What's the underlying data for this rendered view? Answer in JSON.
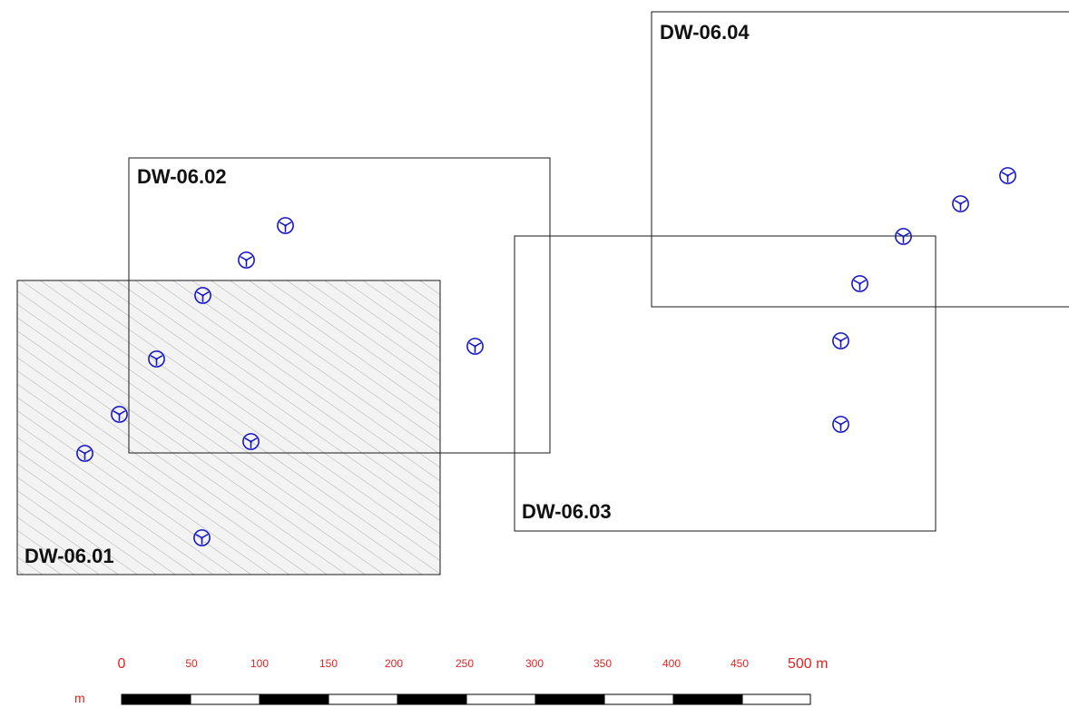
{
  "colors": {
    "frame": "#1a1a1a",
    "turbine": "#1515c8",
    "hatch": "#9a9a9a",
    "hatch_bg": "#f3f3f3",
    "scale_text": "#e32222",
    "scale_black": "#000000",
    "scale_white": "#ffffff"
  },
  "sheets": [
    {
      "label": "DW-06.01",
      "hatched": true
    },
    {
      "label": "DW-06.02",
      "hatched": false
    },
    {
      "label": "DW-06.03",
      "hatched": false
    },
    {
      "label": "DW-06.04",
      "hatched": false
    }
  ],
  "turbine_icon": "wind-turbine-icon",
  "turbine_count": 15,
  "scale_bar": {
    "unit_left": "m",
    "tick_labels": [
      "0",
      "50",
      "100",
      "150",
      "200",
      "250",
      "300",
      "350",
      "400",
      "450",
      "500 m"
    ],
    "segments": [
      "black",
      "white",
      "black",
      "white",
      "black",
      "white",
      "black",
      "white",
      "black",
      "white"
    ]
  }
}
